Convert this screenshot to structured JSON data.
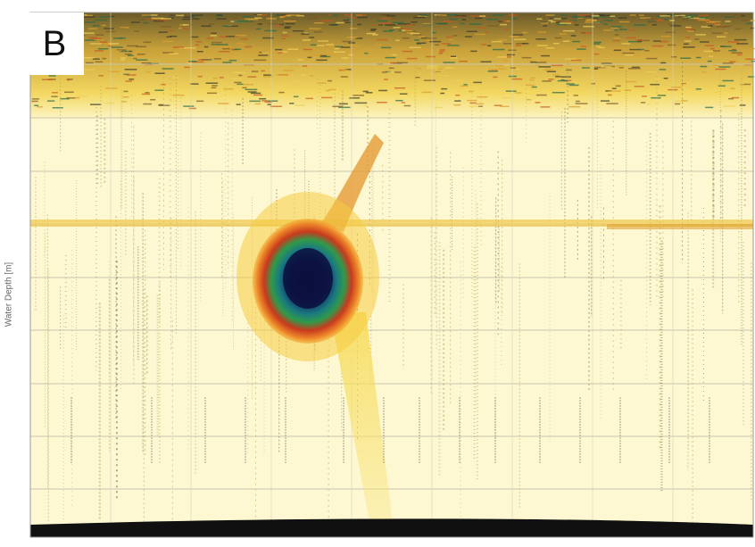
{
  "panel_label": "B",
  "chart_data": {
    "type": "heatmap",
    "title": "",
    "xlabel": "",
    "ylabel": "Water Depth [m]",
    "grid": true,
    "description_colors": {
      "background": "#fdf8d2",
      "weak_echo": "#f4d23a",
      "medium_echo": "#e0602a",
      "strong_echo": "#1a8a55",
      "max_echo": "#0d1a5a",
      "seabed": "#111111"
    }
  }
}
